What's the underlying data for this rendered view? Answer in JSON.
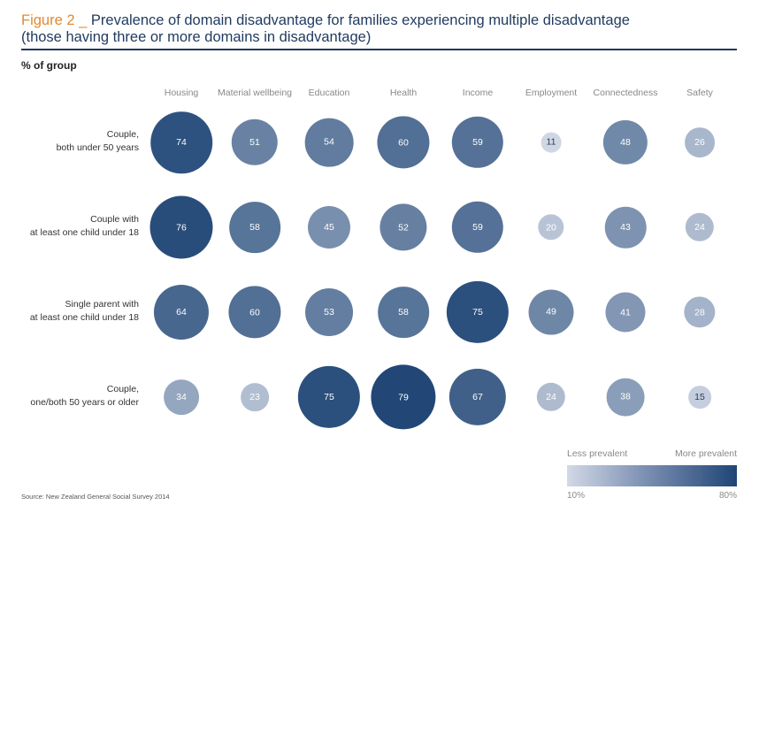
{
  "figure": {
    "number": "Figure 2 _",
    "title_line1": "Prevalence of domain disadvantage for families experiencing multiple disadvantage",
    "title_line2": "(those having three or more domains in disadvantage)",
    "source": "Source: New Zealand General Social Survey 2014"
  },
  "chart_data": {
    "type": "heatmap",
    "ylabel": "% of group",
    "columns": [
      "Housing",
      "Material wellbeing",
      "Education",
      "Health",
      "Income",
      "Employment",
      "Connectedness",
      "Safety"
    ],
    "rows": [
      {
        "label_line1": "Couple,",
        "label_line2": "both under 50 years",
        "values": [
          74,
          51,
          54,
          60,
          59,
          11,
          48,
          26
        ]
      },
      {
        "label_line1": "Couple with",
        "label_line2": "at least one child under 18",
        "values": [
          76,
          58,
          45,
          52,
          59,
          20,
          43,
          24
        ]
      },
      {
        "label_line1": "Single parent with",
        "label_line2": "at least one child under 18",
        "values": [
          64,
          60,
          53,
          58,
          75,
          49,
          41,
          28
        ]
      },
      {
        "label_line1": "Couple,",
        "label_line2": "one/both 50 years or older",
        "values": [
          34,
          23,
          75,
          79,
          67,
          24,
          38,
          15
        ]
      }
    ],
    "legend": {
      "less_label": "Less prevalent",
      "more_label": "More prevalent",
      "min_label": "10%",
      "max_label": "80%",
      "min_value": 10,
      "max_value": 80,
      "color_low": "#d2d9e6",
      "color_high": "#1f4575"
    }
  }
}
